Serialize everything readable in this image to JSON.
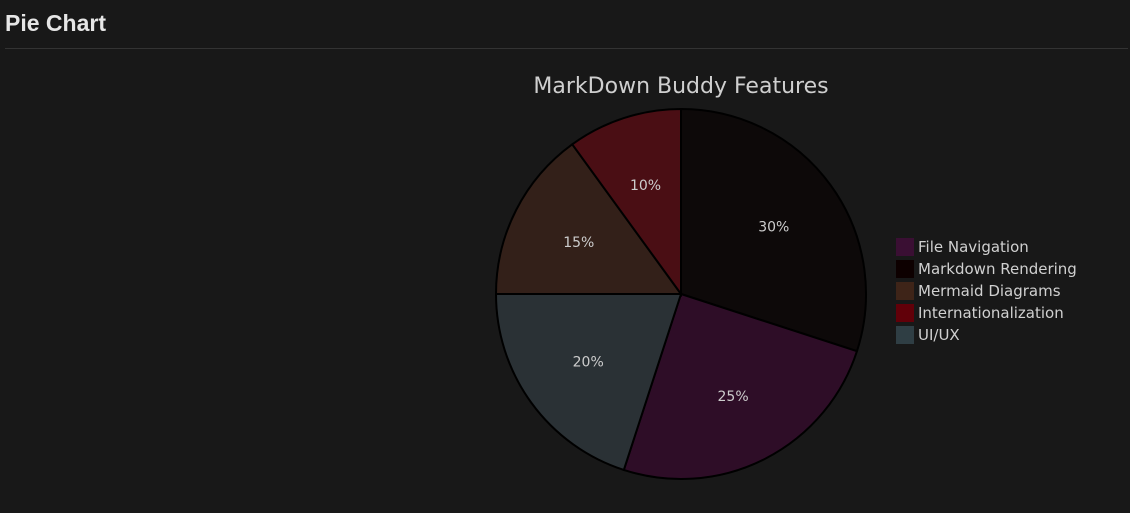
{
  "header": {
    "title": "Pie Chart"
  },
  "chart_data": {
    "type": "pie",
    "title": "MarkDown Buddy Features",
    "categories": [
      "File Navigation",
      "Markdown Rendering",
      "Mermaid Diagrams",
      "Internationalization",
      "UI/UX"
    ],
    "values": [
      25,
      30,
      15,
      10,
      20
    ],
    "value_labels": [
      "25%",
      "30%",
      "15%",
      "10%",
      "20%"
    ],
    "colors": [
      "#2e0d27",
      "#0d0909",
      "#332019",
      "#4a0e14",
      "#2a3135"
    ],
    "legend_colors": [
      "#3a0f33",
      "#0d0000",
      "#3e2418",
      "#610009",
      "#2f3e44"
    ],
    "legend_position": "right"
  }
}
